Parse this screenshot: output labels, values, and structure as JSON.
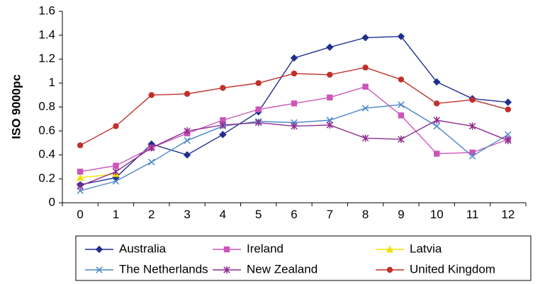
{
  "chart_data": {
    "type": "line",
    "title": "",
    "xlabel": "",
    "ylabel": "ISO 9000pc",
    "x": [
      0,
      1,
      2,
      3,
      4,
      5,
      6,
      7,
      8,
      9,
      10,
      11,
      12
    ],
    "x_tick_labels": [
      "0",
      "1",
      "2",
      "3",
      "4",
      "5",
      "6",
      "7",
      "8",
      "9",
      "10",
      "11",
      "12"
    ],
    "ylim": [
      0,
      1.6
    ],
    "y_ticks": [
      0,
      0.2,
      0.4,
      0.6,
      0.8,
      1,
      1.2,
      1.4,
      1.6
    ],
    "y_tick_labels": [
      "0",
      "0.2",
      "0.4",
      "0.6",
      "0.8",
      "1",
      "1.2",
      "1.4",
      "1.6"
    ],
    "grid": false,
    "legend_position": "bottom",
    "series": [
      {
        "name": "Australia",
        "color": "#1f2f8f",
        "marker": "diamond",
        "x": [
          0,
          1,
          2,
          3,
          4,
          5,
          6,
          7,
          8,
          9,
          10,
          11,
          12
        ],
        "values": [
          0.15,
          0.21,
          0.49,
          0.4,
          0.57,
          0.76,
          1.21,
          1.3,
          1.38,
          1.39,
          1.01,
          0.87,
          0.84
        ]
      },
      {
        "name": "Ireland",
        "color": "#cc55bb",
        "marker": "square",
        "x": [
          0,
          1,
          2,
          3,
          4,
          5,
          6,
          7,
          8,
          9,
          10,
          11,
          12
        ],
        "values": [
          0.26,
          0.31,
          0.46,
          0.58,
          0.69,
          0.78,
          0.83,
          0.88,
          0.97,
          0.73,
          0.41,
          0.42,
          0.53
        ]
      },
      {
        "name": "Latvia",
        "color": "#f2e100",
        "marker": "triangle",
        "x": [
          0,
          1
        ],
        "values": [
          0.21,
          0.24
        ]
      },
      {
        "name": "The Netherlands",
        "color": "#4a86c8",
        "marker": "x",
        "x": [
          0,
          1,
          2,
          3,
          4,
          5,
          6,
          7,
          8,
          9,
          10,
          11,
          12
        ],
        "values": [
          0.1,
          0.18,
          0.34,
          0.52,
          0.64,
          0.68,
          0.67,
          0.69,
          0.79,
          0.82,
          0.64,
          0.39,
          0.57
        ]
      },
      {
        "name": "New Zealand",
        "color": "#8e2b8e",
        "marker": "asterisk",
        "x": [
          0,
          1,
          2,
          3,
          4,
          5,
          6,
          7,
          8,
          9,
          10,
          11,
          12
        ],
        "values": [
          0.14,
          0.26,
          0.46,
          0.6,
          0.65,
          0.67,
          0.64,
          0.65,
          0.54,
          0.53,
          0.69,
          0.64,
          0.52
        ]
      },
      {
        "name": "United Kingdom",
        "color": "#c0302a",
        "marker": "circle",
        "x": [
          0,
          1,
          2,
          3,
          4,
          5,
          6,
          7,
          8,
          9,
          10,
          11,
          12
        ],
        "values": [
          0.48,
          0.64,
          0.9,
          0.91,
          0.96,
          1.0,
          1.08,
          1.07,
          1.13,
          1.03,
          0.83,
          0.86,
          0.78
        ]
      }
    ]
  }
}
